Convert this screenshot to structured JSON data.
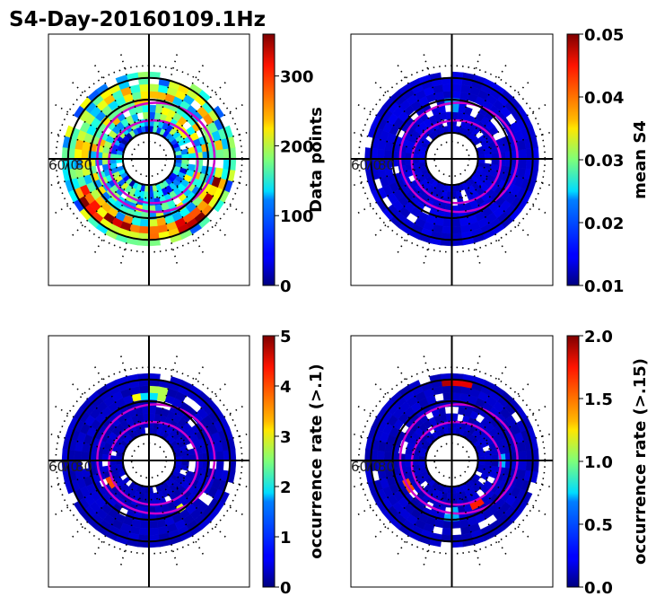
{
  "figure": {
    "title": "S4-Day-20160109.1Hz"
  },
  "colormap": "jet",
  "chart_data": [
    {
      "type": "heatmap",
      "projection": "polar",
      "colorbar_label": "Data points",
      "vlim": [
        0,
        360
      ],
      "ticks": [
        "0",
        "100",
        "200",
        "300"
      ],
      "tick_values": [
        0,
        100,
        200,
        300
      ],
      "lat_labels": [
        "60",
        "70",
        "80"
      ],
      "pattern": "density",
      "level": 0.45,
      "highlights": []
    },
    {
      "type": "heatmap",
      "projection": "polar",
      "colorbar_label": "mean S4",
      "vlim": [
        0.01,
        0.05
      ],
      "ticks": [
        "0.01",
        "0.02",
        "0.03",
        "0.04",
        "0.05"
      ],
      "tick_values": [
        0.01,
        0.02,
        0.03,
        0.04,
        0.05
      ],
      "lat_labels": [
        "60",
        "70",
        "80"
      ],
      "pattern": "uniform",
      "level": 0.06,
      "highlights": [
        {
          "theta": 178,
          "r": 0.55,
          "level": 0.32
        },
        {
          "theta": 182,
          "r": 0.55,
          "level": 0.32
        },
        {
          "theta": 180,
          "r": 0.62,
          "level": 0.28
        }
      ]
    },
    {
      "type": "heatmap",
      "projection": "polar",
      "colorbar_label": "occurrence rate (>.1)",
      "vlim": [
        0,
        5
      ],
      "ticks": [
        "0",
        "1",
        "2",
        "3",
        "4",
        "5"
      ],
      "tick_values": [
        0,
        1,
        2,
        3,
        4,
        5
      ],
      "lat_labels": [
        "60",
        "70",
        "80"
      ],
      "pattern": "uniform",
      "level": 0.04,
      "highlights": [
        {
          "theta": 172,
          "r": 0.78,
          "level": 0.55
        },
        {
          "theta": 180,
          "r": 0.76,
          "level": 0.35
        },
        {
          "theta": 190,
          "r": 0.74,
          "level": 0.62
        },
        {
          "theta": 300,
          "r": 0.5,
          "level": 0.8
        },
        {
          "theta": 35,
          "r": 0.65,
          "level": 0.6
        }
      ]
    },
    {
      "type": "heatmap",
      "projection": "polar",
      "colorbar_label": "occurrence rate (>.15)",
      "vlim": [
        0,
        2
      ],
      "ticks": [
        "0.0",
        "0.5",
        "1.0",
        "1.5",
        "2.0"
      ],
      "tick_values": [
        0,
        0.5,
        1.0,
        1.5,
        2.0
      ],
      "lat_labels": [
        "60",
        "70",
        "80"
      ],
      "pattern": "uniform",
      "level": 0.04,
      "highlights": [
        {
          "theta": 0,
          "r": 0.62,
          "level": 0.3
        },
        {
          "theta": 180,
          "r": 0.88,
          "level": 0.95
        },
        {
          "theta": 172,
          "r": 0.88,
          "level": 0.9
        },
        {
          "theta": 90,
          "r": 0.6,
          "level": 0.3
        },
        {
          "theta": 300,
          "r": 0.55,
          "level": 0.8
        },
        {
          "theta": 30,
          "r": 0.55,
          "level": 0.85
        }
      ]
    }
  ]
}
